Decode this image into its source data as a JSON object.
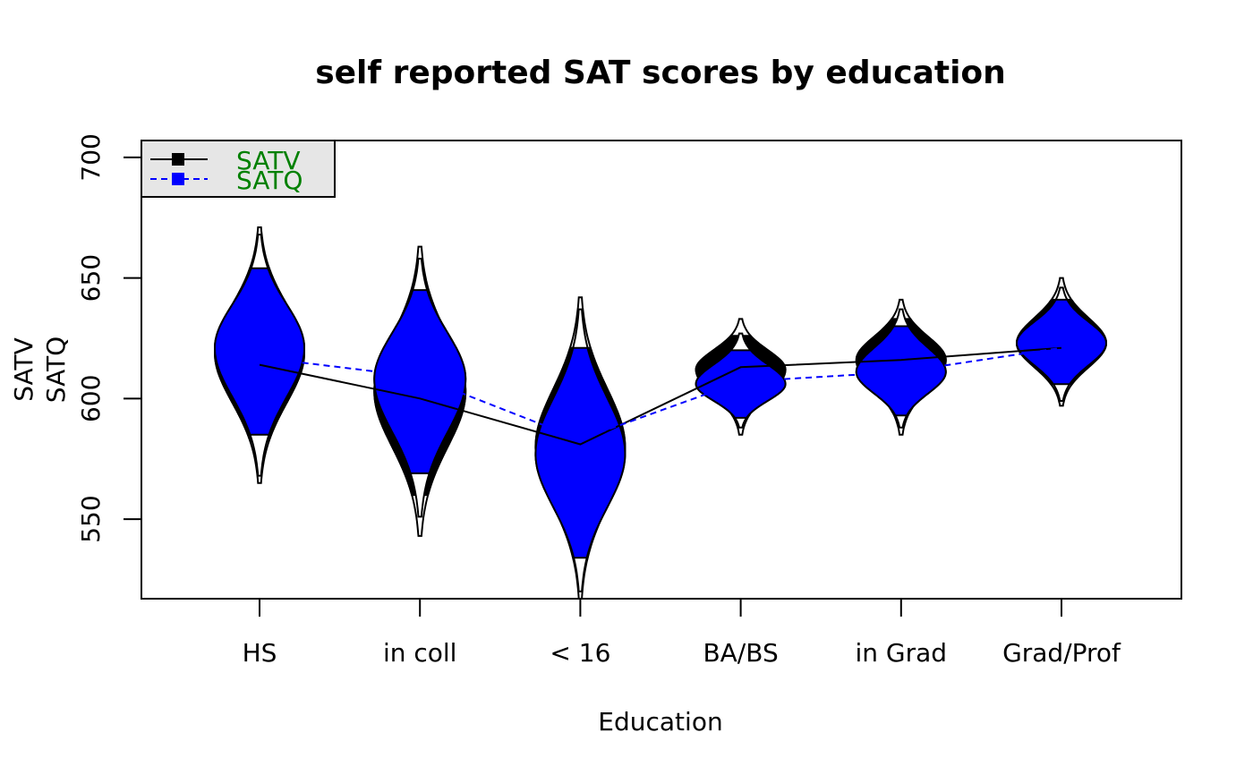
{
  "chart_data": {
    "type": "violin",
    "title": "self reported SAT scores by education",
    "xlabel": "Education",
    "ylabel_lines": [
      "SATV",
      "SATQ"
    ],
    "categories": [
      "HS",
      "in coll",
      "< 16",
      "BA/BS",
      "in Grad",
      "Grad/Prof"
    ],
    "ylim": [
      517,
      707
    ],
    "yticks": [
      550,
      600,
      650,
      700
    ],
    "grid": false,
    "legend": {
      "placement": "top-left",
      "text_color": "#008000",
      "background": "#e6e6e6"
    },
    "series": [
      {
        "name": "SATV",
        "color": "#000000",
        "line_style": "solid",
        "means": [
          614,
          600,
          581,
          613,
          616,
          621
        ],
        "violins": [
          {
            "lo": 565,
            "q_lo": 582,
            "center": 619,
            "q_hi": 654,
            "hi": 671,
            "width": 50
          },
          {
            "lo": 543,
            "q_lo": 560,
            "center": 603,
            "q_hi": 645,
            "hi": 663,
            "width": 51
          },
          {
            "lo": 517,
            "q_lo": 533,
            "center": 580,
            "q_hi": 621,
            "hi": 642,
            "width": 50
          },
          {
            "lo": 585,
            "q_lo": 593,
            "center": 612,
            "q_hi": 626,
            "hi": 633,
            "width": 50
          },
          {
            "lo": 585,
            "q_lo": 594,
            "center": 616,
            "q_hi": 633,
            "hi": 641,
            "width": 50
          },
          {
            "lo": 597,
            "q_lo": 606,
            "center": 623,
            "q_hi": 641,
            "hi": 650,
            "width": 50
          }
        ]
      },
      {
        "name": "SATQ",
        "color": "#0000ff",
        "line_style": "dashed",
        "means": [
          617,
          609,
          583,
          607,
          611,
          621
        ],
        "violins": [
          {
            "lo": 568,
            "q_lo": 585,
            "center": 621,
            "q_hi": 654,
            "hi": 668,
            "width": 50
          },
          {
            "lo": 551,
            "q_lo": 569,
            "center": 608,
            "q_hi": 645,
            "hi": 658,
            "width": 51
          },
          {
            "lo": 520,
            "q_lo": 534,
            "center": 577,
            "q_hi": 621,
            "hi": 637,
            "width": 50
          },
          {
            "lo": 588,
            "q_lo": 592,
            "center": 606,
            "q_hi": 620,
            "hi": 627,
            "width": 50
          },
          {
            "lo": 588,
            "q_lo": 593,
            "center": 611,
            "q_hi": 630,
            "hi": 637,
            "width": 50
          },
          {
            "lo": 599,
            "q_lo": 606,
            "center": 623,
            "q_hi": 641,
            "hi": 646,
            "width": 50
          }
        ]
      }
    ]
  }
}
